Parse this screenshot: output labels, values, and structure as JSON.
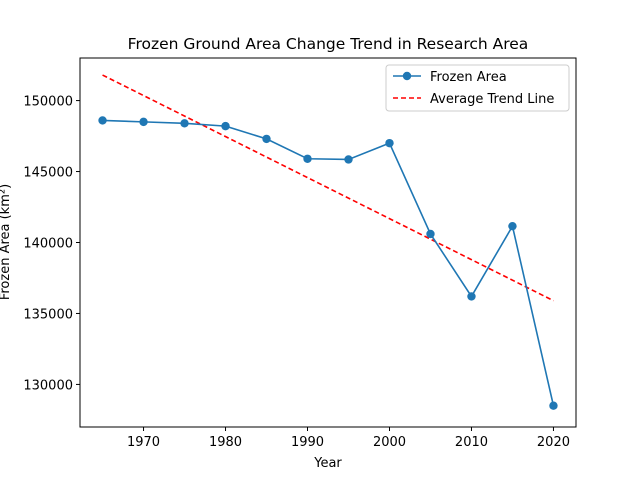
{
  "chart_data": {
    "type": "line",
    "title": "Frozen Ground Area Change Trend in Research Area",
    "xlabel": "Year",
    "ylabel": "Frozen Area (km²)",
    "xlim": [
      1962.25,
      2022.75
    ],
    "ylim": [
      127000,
      153000
    ],
    "x_ticks": [
      1970,
      1980,
      1990,
      2000,
      2010,
      2020
    ],
    "y_ticks": [
      130000,
      135000,
      140000,
      145000,
      150000
    ],
    "grid": false,
    "legend_position": "upper right",
    "series": [
      {
        "name": "Frozen Area",
        "style": "solid line with circle markers",
        "color": "#1f77b4",
        "x": [
          1965,
          1970,
          1975,
          1980,
          1985,
          1990,
          1995,
          2000,
          2005,
          2010,
          2015,
          2020
        ],
        "y": [
          148600,
          148500,
          148400,
          148200,
          147300,
          145900,
          145850,
          147000,
          140600,
          136200,
          141150,
          128500
        ]
      },
      {
        "name": "Average Trend Line",
        "style": "dashed line",
        "color": "#ff0000",
        "x": [
          1965,
          2020
        ],
        "y": [
          151800,
          135900
        ]
      }
    ]
  }
}
